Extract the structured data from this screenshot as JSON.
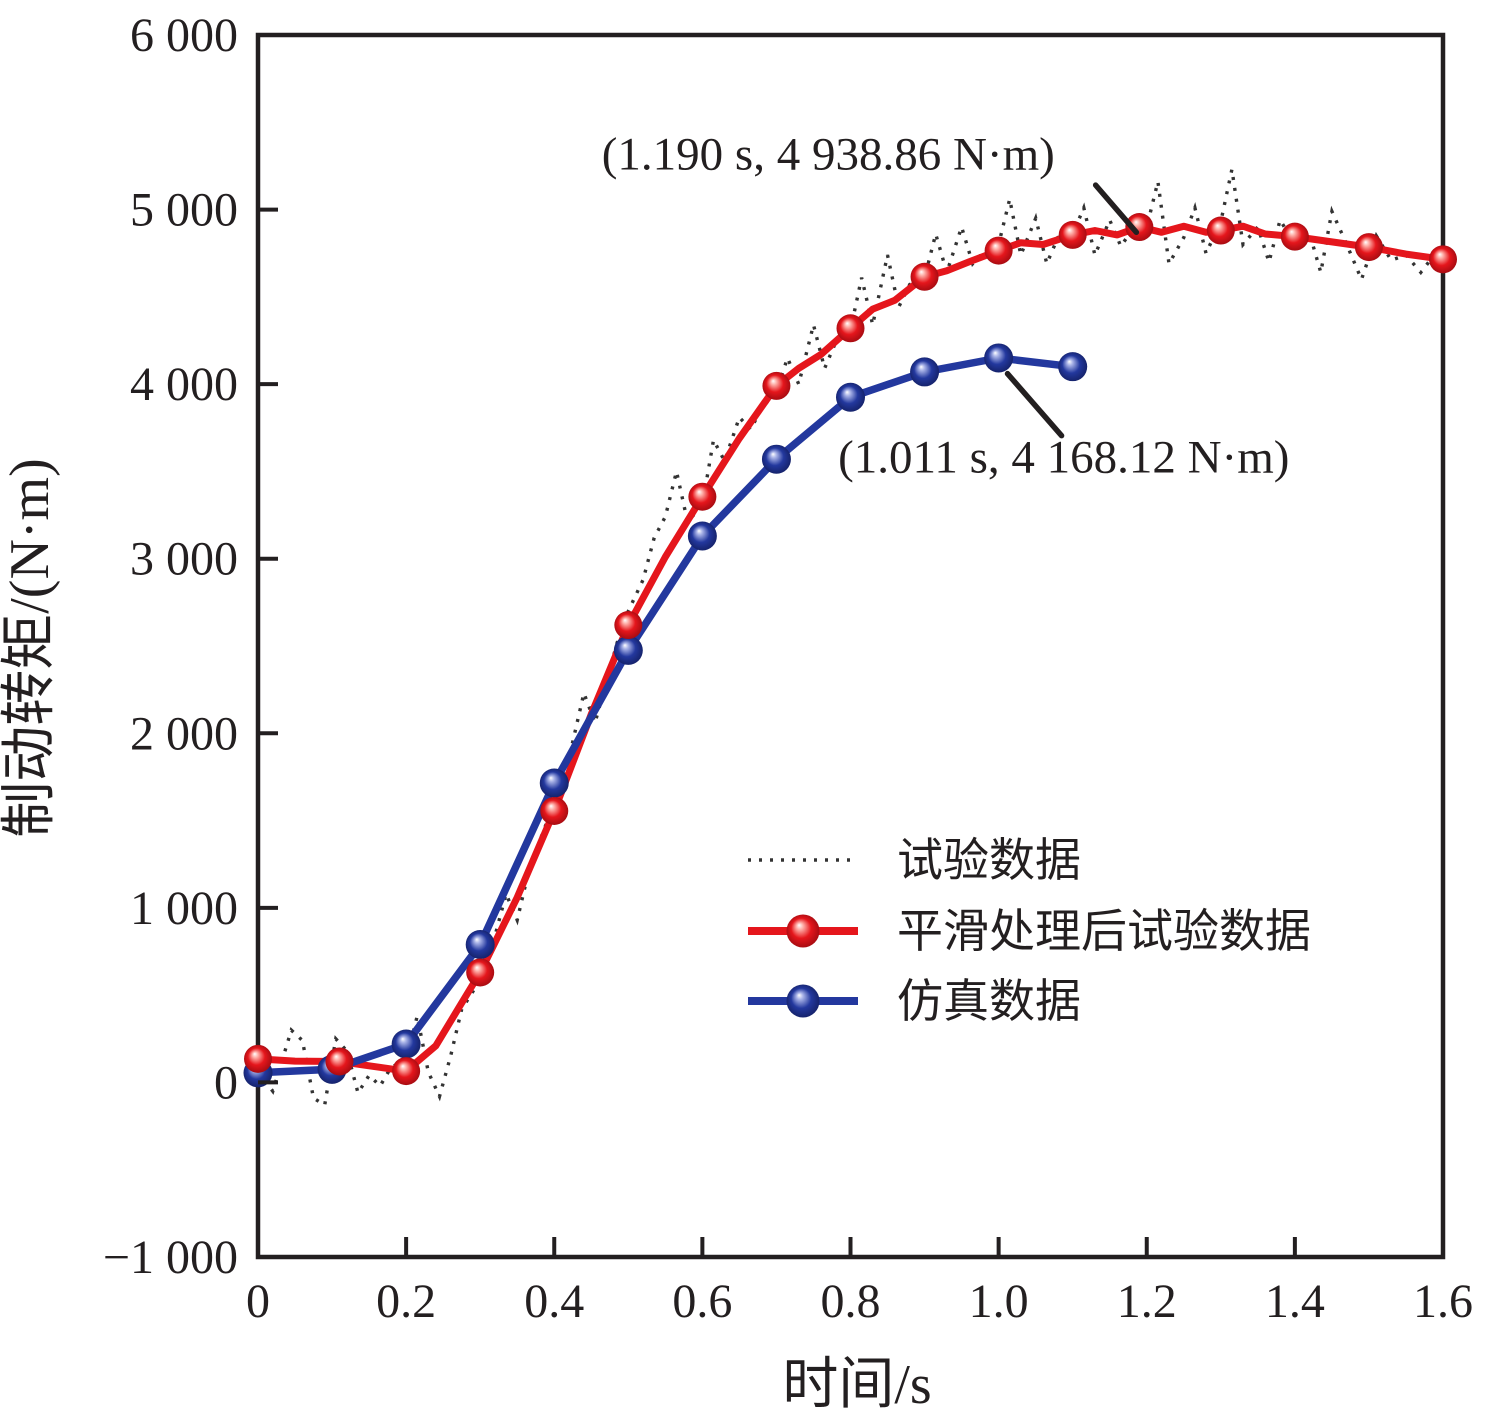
{
  "figure": {
    "background": "#ffffff",
    "axis_color": "#231f20"
  },
  "chart_data": {
    "type": "line",
    "title": "",
    "xlabel": "时间/s",
    "ylabel": "制动转矩/(N·m)",
    "xlim": [
      0,
      1.6
    ],
    "ylim": [
      -1000,
      6000
    ],
    "grid": false,
    "legend_position": "inside middle-right",
    "x_ticks": {
      "values": [
        0,
        0.2,
        0.4,
        0.6,
        0.8,
        1.0,
        1.2,
        1.4,
        1.6
      ],
      "labels": [
        "0",
        "0.2",
        "0.4",
        "0.6",
        "0.8",
        "1.0",
        "1.2",
        "1.4",
        "1.6"
      ]
    },
    "y_ticks": {
      "values": [
        -1000,
        0,
        1000,
        2000,
        3000,
        4000,
        5000,
        6000
      ],
      "labels": [
        "−1 000",
        "0",
        "1 000",
        "2 000",
        "3 000",
        "4 000",
        "5 000",
        "6 000"
      ]
    },
    "series": [
      {
        "id": "test",
        "name": "试验数据",
        "style": "dotted",
        "color": "#333333",
        "points": [
          [
            0.0,
            60
          ],
          [
            0.02,
            -50
          ],
          [
            0.045,
            300
          ],
          [
            0.06,
            240
          ],
          [
            0.075,
            -90
          ],
          [
            0.09,
            -130
          ],
          [
            0.105,
            250
          ],
          [
            0.12,
            180
          ],
          [
            0.135,
            -60
          ],
          [
            0.15,
            40
          ],
          [
            0.165,
            -20
          ],
          [
            0.18,
            90
          ],
          [
            0.2,
            120
          ],
          [
            0.215,
            380
          ],
          [
            0.23,
            60
          ],
          [
            0.245,
            -80
          ],
          [
            0.26,
            150
          ],
          [
            0.275,
            420
          ],
          [
            0.29,
            520
          ],
          [
            0.305,
            640
          ],
          [
            0.32,
            840
          ],
          [
            0.335,
            1080
          ],
          [
            0.35,
            930
          ],
          [
            0.365,
            1200
          ],
          [
            0.38,
            1380
          ],
          [
            0.4,
            1600
          ],
          [
            0.42,
            1860
          ],
          [
            0.44,
            2230
          ],
          [
            0.455,
            2060
          ],
          [
            0.47,
            2290
          ],
          [
            0.485,
            2520
          ],
          [
            0.5,
            2700
          ],
          [
            0.52,
            2880
          ],
          [
            0.535,
            3120
          ],
          [
            0.55,
            3240
          ],
          [
            0.565,
            3500
          ],
          [
            0.58,
            3210
          ],
          [
            0.6,
            3310
          ],
          [
            0.615,
            3680
          ],
          [
            0.63,
            3560
          ],
          [
            0.65,
            3810
          ],
          [
            0.665,
            3740
          ],
          [
            0.68,
            3860
          ],
          [
            0.7,
            3960
          ],
          [
            0.715,
            4150
          ],
          [
            0.73,
            4000
          ],
          [
            0.75,
            4340
          ],
          [
            0.765,
            4090
          ],
          [
            0.78,
            4240
          ],
          [
            0.8,
            4310
          ],
          [
            0.815,
            4610
          ],
          [
            0.83,
            4340
          ],
          [
            0.85,
            4740
          ],
          [
            0.865,
            4440
          ],
          [
            0.88,
            4570
          ],
          [
            0.9,
            4610
          ],
          [
            0.915,
            4860
          ],
          [
            0.93,
            4640
          ],
          [
            0.95,
            4900
          ],
          [
            0.965,
            4690
          ],
          [
            0.98,
            4760
          ],
          [
            1.0,
            4800
          ],
          [
            1.015,
            5060
          ],
          [
            1.03,
            4740
          ],
          [
            1.05,
            4950
          ],
          [
            1.065,
            4690
          ],
          [
            1.08,
            4840
          ],
          [
            1.1,
            4860
          ],
          [
            1.115,
            5010
          ],
          [
            1.13,
            4740
          ],
          [
            1.15,
            4940
          ],
          [
            1.165,
            4790
          ],
          [
            1.18,
            4880
          ],
          [
            1.2,
            4900
          ],
          [
            1.215,
            5160
          ],
          [
            1.23,
            4690
          ],
          [
            1.25,
            4840
          ],
          [
            1.265,
            5010
          ],
          [
            1.28,
            4750
          ],
          [
            1.3,
            4930
          ],
          [
            1.315,
            5230
          ],
          [
            1.33,
            4800
          ],
          [
            1.35,
            4900
          ],
          [
            1.365,
            4700
          ],
          [
            1.38,
            4940
          ],
          [
            1.4,
            4800
          ],
          [
            1.42,
            4860
          ],
          [
            1.435,
            4640
          ],
          [
            1.45,
            4990
          ],
          [
            1.47,
            4800
          ],
          [
            1.49,
            4600
          ],
          [
            1.51,
            4850
          ],
          [
            1.53,
            4710
          ],
          [
            1.55,
            4740
          ],
          [
            1.57,
            4640
          ],
          [
            1.59,
            4750
          ],
          [
            1.6,
            4700
          ]
        ]
      },
      {
        "id": "smoothed",
        "name": "平滑处理后试验数据",
        "style": "line-marker",
        "color": "#e5161c",
        "marker_gradient": [
          "#ffffff",
          "#ffb3ac",
          "#e5161c",
          "#9d0a10"
        ],
        "line_points": [
          [
            0.0,
            135
          ],
          [
            0.05,
            122
          ],
          [
            0.11,
            120
          ],
          [
            0.15,
            95
          ],
          [
            0.2,
            65
          ],
          [
            0.24,
            210
          ],
          [
            0.27,
            420
          ],
          [
            0.3,
            630
          ],
          [
            0.35,
            1060
          ],
          [
            0.4,
            1555
          ],
          [
            0.45,
            2110
          ],
          [
            0.5,
            2620
          ],
          [
            0.55,
            3010
          ],
          [
            0.6,
            3355
          ],
          [
            0.65,
            3690
          ],
          [
            0.7,
            3990
          ],
          [
            0.73,
            4090
          ],
          [
            0.76,
            4170
          ],
          [
            0.8,
            4320
          ],
          [
            0.83,
            4430
          ],
          [
            0.86,
            4480
          ],
          [
            0.9,
            4615
          ],
          [
            0.93,
            4650
          ],
          [
            0.96,
            4700
          ],
          [
            1.0,
            4765
          ],
          [
            1.03,
            4810
          ],
          [
            1.06,
            4800
          ],
          [
            1.1,
            4855
          ],
          [
            1.13,
            4880
          ],
          [
            1.16,
            4855
          ],
          [
            1.19,
            4900
          ],
          [
            1.22,
            4870
          ],
          [
            1.25,
            4905
          ],
          [
            1.28,
            4870
          ],
          [
            1.3,
            4880
          ],
          [
            1.33,
            4905
          ],
          [
            1.36,
            4860
          ],
          [
            1.4,
            4845
          ],
          [
            1.45,
            4815
          ],
          [
            1.5,
            4785
          ],
          [
            1.55,
            4745
          ],
          [
            1.6,
            4715
          ]
        ],
        "markers": [
          [
            0.0,
            135
          ],
          [
            0.11,
            120
          ],
          [
            0.2,
            65
          ],
          [
            0.3,
            630
          ],
          [
            0.4,
            1555
          ],
          [
            0.5,
            2620
          ],
          [
            0.6,
            3355
          ],
          [
            0.7,
            3990
          ],
          [
            0.8,
            4320
          ],
          [
            0.9,
            4615
          ],
          [
            1.0,
            4765
          ],
          [
            1.1,
            4855
          ],
          [
            1.19,
            4900
          ],
          [
            1.3,
            4880
          ],
          [
            1.4,
            4845
          ],
          [
            1.5,
            4785
          ],
          [
            1.6,
            4715
          ]
        ],
        "peak_label": "(1.190 s, 4 938.86 N·m)"
      },
      {
        "id": "simulation",
        "name": "仿真数据",
        "style": "line-marker",
        "color": "#23389e",
        "marker_gradient": [
          "#ffffff",
          "#aab4e8",
          "#23389e",
          "#131f63"
        ],
        "line_points": [
          [
            0.0,
            55
          ],
          [
            0.1,
            75
          ],
          [
            0.2,
            220
          ],
          [
            0.3,
            790
          ],
          [
            0.4,
            1715
          ],
          [
            0.5,
            2475
          ],
          [
            0.6,
            3130
          ],
          [
            0.7,
            3570
          ],
          [
            0.8,
            3925
          ],
          [
            0.9,
            4070
          ],
          [
            1.0,
            4150
          ],
          [
            1.1,
            4100
          ]
        ],
        "markers": [
          [
            0.0,
            55
          ],
          [
            0.1,
            75
          ],
          [
            0.2,
            220
          ],
          [
            0.3,
            790
          ],
          [
            0.4,
            1715
          ],
          [
            0.5,
            2475
          ],
          [
            0.6,
            3130
          ],
          [
            0.7,
            3570
          ],
          [
            0.8,
            3925
          ],
          [
            0.9,
            4070
          ],
          [
            1.0,
            4150
          ],
          [
            1.1,
            4100
          ]
        ],
        "peak_label": "(1.011 s, 4 168.12 N·m)"
      }
    ],
    "annotations": [
      {
        "id": "smoothed-peak",
        "text": "(1.190 s, 4 938.86 N·m)",
        "text_pos": [
          0.77,
          5320
        ],
        "arrow": [
          [
            1.131,
            5140
          ],
          [
            1.186,
            4870
          ]
        ]
      },
      {
        "id": "simulation-peak",
        "text": "(1.011 s, 4 168.12 N·m)",
        "text_pos": [
          1.088,
          3585
        ],
        "arrow": [
          [
            1.012,
            4060
          ],
          [
            1.085,
            3705
          ]
        ]
      }
    ]
  }
}
